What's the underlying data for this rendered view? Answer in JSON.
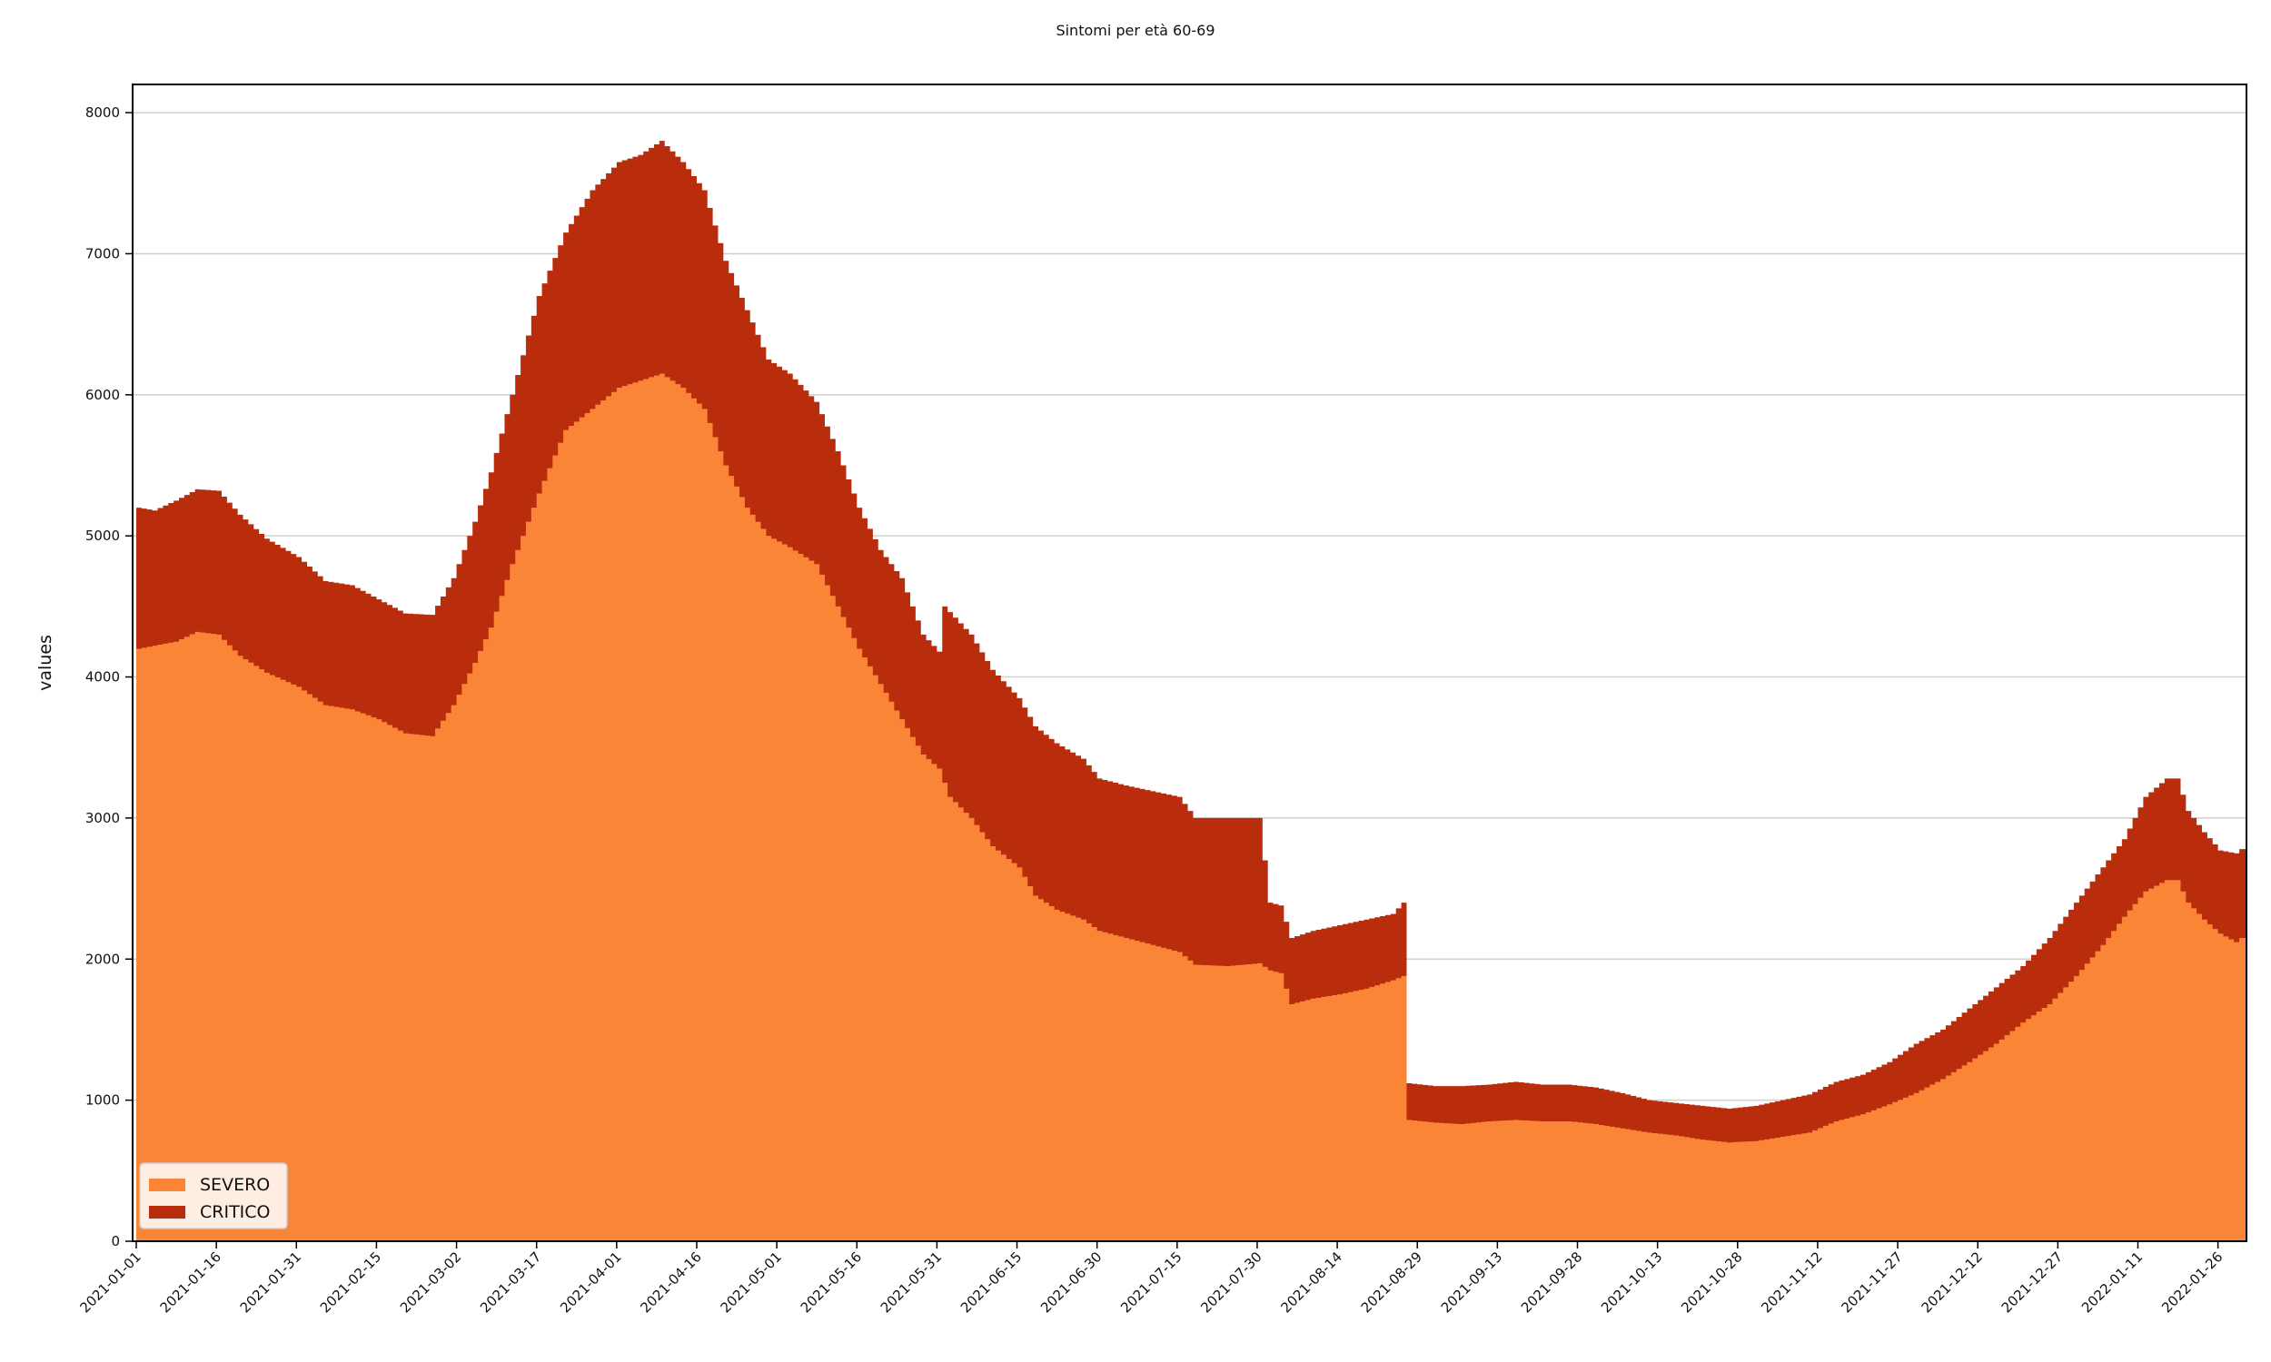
{
  "chart_data": {
    "type": "area",
    "stacked": true,
    "step": true,
    "title": "Sintomi per età 60-69",
    "xlabel": "",
    "ylabel": "values",
    "ylim": [
      0,
      8200
    ],
    "yticks": [
      0,
      1000,
      2000,
      3000,
      4000,
      5000,
      6000,
      7000,
      8000
    ],
    "xlim": [
      "2021-01-01",
      "2022-01-31"
    ],
    "xticks": [
      "2021-01-01",
      "2021-01-16",
      "2021-01-31",
      "2021-02-15",
      "2021-03-02",
      "2021-03-17",
      "2021-04-01",
      "2021-04-16",
      "2021-05-01",
      "2021-05-16",
      "2021-05-31",
      "2021-06-15",
      "2021-06-30",
      "2021-07-15",
      "2021-07-30",
      "2021-08-14",
      "2021-08-29",
      "2021-09-13",
      "2021-09-28",
      "2021-10-13",
      "2021-10-28",
      "2021-11-12",
      "2021-11-27",
      "2021-12-12",
      "2021-12-27",
      "2022-01-11",
      "2022-01-26"
    ],
    "grid": "horizontal",
    "legend_position": "bottom-left",
    "series": [
      {
        "name": "SEVERO",
        "color": "#fb8536",
        "points": [
          [
            "2021-01-01",
            4200
          ],
          [
            "2021-01-08",
            4250
          ],
          [
            "2021-01-12",
            4320
          ],
          [
            "2021-01-16",
            4300
          ],
          [
            "2021-01-20",
            4150
          ],
          [
            "2021-01-25",
            4030
          ],
          [
            "2021-01-31",
            3930
          ],
          [
            "2021-02-05",
            3800
          ],
          [
            "2021-02-10",
            3770
          ],
          [
            "2021-02-15",
            3700
          ],
          [
            "2021-02-20",
            3600
          ],
          [
            "2021-02-25",
            3580
          ],
          [
            "2021-03-01",
            3800
          ],
          [
            "2021-03-05",
            4100
          ],
          [
            "2021-03-08",
            4350
          ],
          [
            "2021-03-12",
            4800
          ],
          [
            "2021-03-17",
            5300
          ],
          [
            "2021-03-22",
            5750
          ],
          [
            "2021-03-27",
            5900
          ],
          [
            "2021-04-01",
            6050
          ],
          [
            "2021-04-05",
            6100
          ],
          [
            "2021-04-09",
            6150
          ],
          [
            "2021-04-13",
            6050
          ],
          [
            "2021-04-17",
            5900
          ],
          [
            "2021-04-21",
            5500
          ],
          [
            "2021-04-25",
            5200
          ],
          [
            "2021-04-29",
            5000
          ],
          [
            "2021-05-03",
            4920
          ],
          [
            "2021-05-08",
            4800
          ],
          [
            "2021-05-12",
            4500
          ],
          [
            "2021-05-16",
            4200
          ],
          [
            "2021-05-20",
            3950
          ],
          [
            "2021-05-24",
            3700
          ],
          [
            "2021-05-28",
            3450
          ],
          [
            "2021-05-31",
            3350
          ],
          [
            "2021-06-02",
            3150
          ],
          [
            "2021-06-06",
            3000
          ],
          [
            "2021-06-10",
            2800
          ],
          [
            "2021-06-15",
            2650
          ],
          [
            "2021-06-18",
            2450
          ],
          [
            "2021-06-22",
            2350
          ],
          [
            "2021-06-27",
            2280
          ],
          [
            "2021-06-30",
            2200
          ],
          [
            "2021-07-05",
            2150
          ],
          [
            "2021-07-10",
            2100
          ],
          [
            "2021-07-15",
            2050
          ],
          [
            "2021-07-18",
            1960
          ],
          [
            "2021-07-24",
            1950
          ],
          [
            "2021-07-30",
            1970
          ],
          [
            "2021-08-01",
            1920
          ],
          [
            "2021-08-03",
            1900
          ],
          [
            "2021-08-05",
            1680
          ],
          [
            "2021-08-09",
            1720
          ],
          [
            "2021-08-14",
            1750
          ],
          [
            "2021-08-19",
            1790
          ],
          [
            "2021-08-24",
            1850
          ],
          [
            "2021-08-26",
            1880
          ],
          [
            "2021-08-27",
            860
          ],
          [
            "2021-09-01",
            840
          ],
          [
            "2021-09-06",
            830
          ],
          [
            "2021-09-11",
            850
          ],
          [
            "2021-09-16",
            860
          ],
          [
            "2021-09-21",
            850
          ],
          [
            "2021-09-26",
            850
          ],
          [
            "2021-10-01",
            830
          ],
          [
            "2021-10-06",
            800
          ],
          [
            "2021-10-11",
            770
          ],
          [
            "2021-10-16",
            750
          ],
          [
            "2021-10-21",
            720
          ],
          [
            "2021-10-26",
            700
          ],
          [
            "2021-10-31",
            710
          ],
          [
            "2021-11-05",
            740
          ],
          [
            "2021-11-10",
            770
          ],
          [
            "2021-11-15",
            850
          ],
          [
            "2021-11-20",
            900
          ],
          [
            "2021-11-25",
            970
          ],
          [
            "2021-11-30",
            1050
          ],
          [
            "2021-12-05",
            1150
          ],
          [
            "2021-12-10",
            1270
          ],
          [
            "2021-12-15",
            1400
          ],
          [
            "2021-12-20",
            1550
          ],
          [
            "2021-12-25",
            1680
          ],
          [
            "2021-12-30",
            1880
          ],
          [
            "2022-01-04",
            2100
          ],
          [
            "2022-01-08",
            2300
          ],
          [
            "2022-01-12",
            2480
          ],
          [
            "2022-01-16",
            2560
          ],
          [
            "2022-01-18",
            2560
          ],
          [
            "2022-01-20",
            2400
          ],
          [
            "2022-01-23",
            2280
          ],
          [
            "2022-01-26",
            2180
          ],
          [
            "2022-01-29",
            2120
          ],
          [
            "2022-01-30",
            2150
          ],
          [
            "2022-01-31",
            2150
          ]
        ]
      },
      {
        "name": "CRITICO",
        "color": "#b92d0d",
        "points": [
          [
            "2021-01-01",
            5200
          ],
          [
            "2021-01-04",
            5180
          ],
          [
            "2021-01-08",
            5250
          ],
          [
            "2021-01-12",
            5330
          ],
          [
            "2021-01-16",
            5320
          ],
          [
            "2021-01-20",
            5150
          ],
          [
            "2021-01-25",
            4980
          ],
          [
            "2021-01-31",
            4850
          ],
          [
            "2021-02-05",
            4680
          ],
          [
            "2021-02-10",
            4650
          ],
          [
            "2021-02-15",
            4550
          ],
          [
            "2021-02-20",
            4450
          ],
          [
            "2021-02-25",
            4440
          ],
          [
            "2021-03-01",
            4700
          ],
          [
            "2021-03-05",
            5100
          ],
          [
            "2021-03-08",
            5450
          ],
          [
            "2021-03-12",
            6000
          ],
          [
            "2021-03-17",
            6700
          ],
          [
            "2021-03-22",
            7150
          ],
          [
            "2021-03-27",
            7450
          ],
          [
            "2021-04-01",
            7650
          ],
          [
            "2021-04-05",
            7700
          ],
          [
            "2021-04-09",
            7800
          ],
          [
            "2021-04-13",
            7650
          ],
          [
            "2021-04-17",
            7450
          ],
          [
            "2021-04-21",
            6950
          ],
          [
            "2021-04-25",
            6600
          ],
          [
            "2021-04-29",
            6250
          ],
          [
            "2021-05-03",
            6150
          ],
          [
            "2021-05-08",
            5950
          ],
          [
            "2021-05-12",
            5600
          ],
          [
            "2021-05-16",
            5200
          ],
          [
            "2021-05-20",
            4900
          ],
          [
            "2021-05-24",
            4700
          ],
          [
            "2021-05-28",
            4300
          ],
          [
            "2021-05-31",
            4180
          ],
          [
            "2021-06-01",
            4500
          ],
          [
            "2021-06-06",
            4300
          ],
          [
            "2021-06-10",
            4050
          ],
          [
            "2021-06-15",
            3850
          ],
          [
            "2021-06-18",
            3650
          ],
          [
            "2021-06-22",
            3530
          ],
          [
            "2021-06-27",
            3420
          ],
          [
            "2021-06-30",
            3280
          ],
          [
            "2021-07-05",
            3230
          ],
          [
            "2021-07-10",
            3190
          ],
          [
            "2021-07-15",
            3150
          ],
          [
            "2021-07-18",
            3000
          ],
          [
            "2021-07-24",
            3000
          ],
          [
            "2021-07-30",
            3000
          ],
          [
            "2021-08-01",
            2400
          ],
          [
            "2021-08-03",
            2380
          ],
          [
            "2021-08-05",
            2150
          ],
          [
            "2021-08-09",
            2200
          ],
          [
            "2021-08-14",
            2240
          ],
          [
            "2021-08-19",
            2280
          ],
          [
            "2021-08-24",
            2320
          ],
          [
            "2021-08-26",
            2400
          ],
          [
            "2021-08-27",
            1120
          ],
          [
            "2021-09-01",
            1100
          ],
          [
            "2021-09-06",
            1100
          ],
          [
            "2021-09-11",
            1110
          ],
          [
            "2021-09-16",
            1130
          ],
          [
            "2021-09-21",
            1110
          ],
          [
            "2021-09-26",
            1110
          ],
          [
            "2021-10-01",
            1090
          ],
          [
            "2021-10-06",
            1050
          ],
          [
            "2021-10-11",
            1000
          ],
          [
            "2021-10-16",
            980
          ],
          [
            "2021-10-21",
            960
          ],
          [
            "2021-10-26",
            940
          ],
          [
            "2021-10-31",
            960
          ],
          [
            "2021-11-05",
            1000
          ],
          [
            "2021-11-10",
            1040
          ],
          [
            "2021-11-15",
            1130
          ],
          [
            "2021-11-20",
            1180
          ],
          [
            "2021-11-25",
            1270
          ],
          [
            "2021-11-30",
            1400
          ],
          [
            "2021-12-05",
            1500
          ],
          [
            "2021-12-10",
            1650
          ],
          [
            "2021-12-15",
            1800
          ],
          [
            "2021-12-20",
            1950
          ],
          [
            "2021-12-25",
            2150
          ],
          [
            "2021-12-30",
            2400
          ],
          [
            "2022-01-04",
            2650
          ],
          [
            "2022-01-08",
            2850
          ],
          [
            "2022-01-12",
            3150
          ],
          [
            "2022-01-16",
            3280
          ],
          [
            "2022-01-18",
            3280
          ],
          [
            "2022-01-20",
            3050
          ],
          [
            "2022-01-23",
            2900
          ],
          [
            "2022-01-26",
            2770
          ],
          [
            "2022-01-29",
            2750
          ],
          [
            "2022-01-30",
            2780
          ],
          [
            "2022-01-31",
            2780
          ]
        ]
      }
    ]
  }
}
